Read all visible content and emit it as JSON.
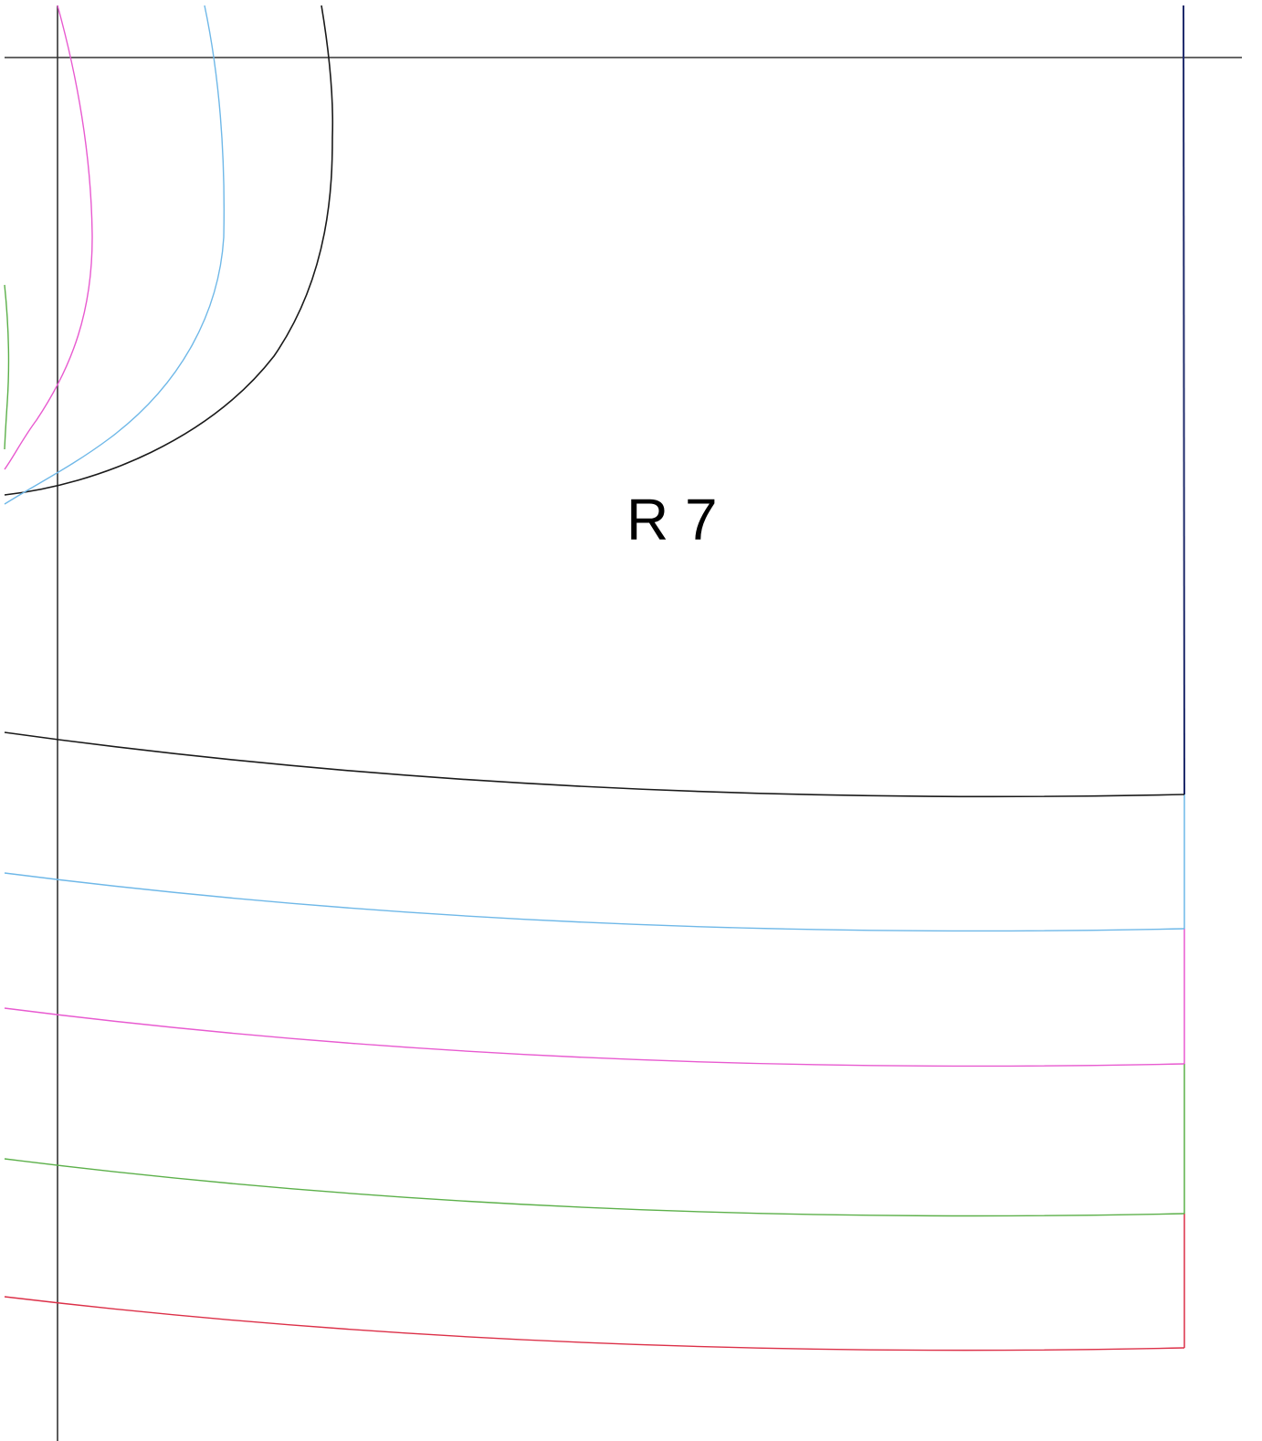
{
  "piece_label": "R 7",
  "colors": {
    "guide_line": "#333333",
    "cut_black": "#1a1a1a",
    "size_blue": "#6fb8e8",
    "size_magenta": "#e85ad0",
    "size_green": "#5cb04a",
    "size_red": "#dc3048",
    "edge_navy": "#1e2a6b"
  }
}
